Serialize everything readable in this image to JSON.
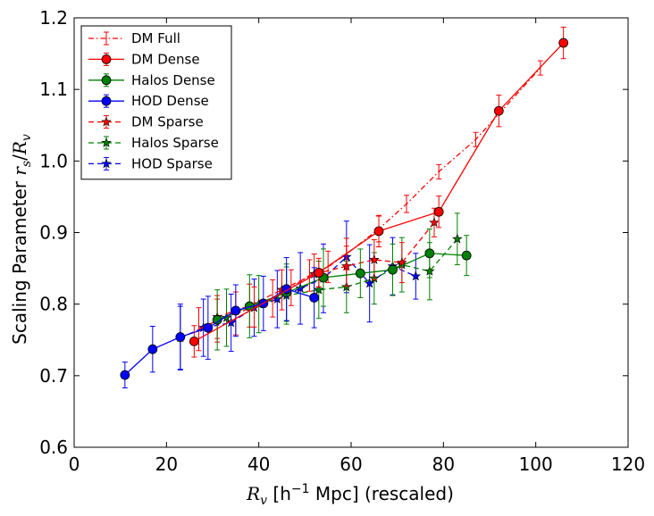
{
  "chart_data": {
    "type": "scatter",
    "title": "",
    "xlabel": "R_v [h^-1 Mpc] (rescaled)",
    "ylabel": "Scaling Parameter r_s / R_v",
    "xlabel_parts": {
      "r": "R",
      "sub": "v",
      "unit_open": "[h",
      "sup": "−1",
      "unit_close": "Mpc] (rescaled)"
    },
    "ylabel_parts": {
      "text": "Scaling Parameter ",
      "r1": "r",
      "sub1": "s",
      "slash": "/",
      "r2": "R",
      "sub2": "v"
    },
    "xlim": [
      0,
      120
    ],
    "ylim": [
      0.6,
      1.2
    ],
    "xticks": [
      0,
      20,
      40,
      60,
      80,
      100,
      120
    ],
    "xtick_labels": [
      "0",
      "20",
      "40",
      "60",
      "80",
      "100",
      "120"
    ],
    "yticks": [
      0.6,
      0.7,
      0.8,
      0.9,
      1.0,
      1.1,
      1.2
    ],
    "ytick_labels": [
      "0.6",
      "0.7",
      "0.8",
      "0.9",
      "1.0",
      "1.1",
      "1.2"
    ],
    "legend_position": "top-left",
    "series": [
      {
        "name": "DM Full",
        "color": "#ff0000",
        "linestyle": "dashdot",
        "marker": "none",
        "x": [
          27,
          31,
          35,
          39,
          43,
          47,
          51,
          55,
          59,
          66,
          72,
          79,
          87,
          101
        ],
        "y": [
          0.765,
          0.777,
          0.787,
          0.796,
          0.808,
          0.823,
          0.84,
          0.852,
          0.87,
          0.905,
          0.94,
          0.985,
          1.03,
          1.13
        ],
        "err": [
          0.03,
          0.03,
          0.03,
          0.028,
          0.026,
          0.025,
          0.022,
          0.022,
          0.022,
          0.018,
          0.012,
          0.01,
          0.01,
          0.01
        ]
      },
      {
        "name": "DM Dense",
        "color": "#ff0000",
        "linestyle": "solid",
        "marker": "circle",
        "x": [
          26,
          53,
          66,
          79,
          92,
          106
        ],
        "y": [
          0.748,
          0.844,
          0.902,
          0.929,
          1.07,
          1.165
        ],
        "err": [
          0.022,
          0.02,
          0.022,
          0.022,
          0.022,
          0.022
        ]
      },
      {
        "name": "Halos Dense",
        "color": "#008000",
        "linestyle": "solid",
        "marker": "circle",
        "x": [
          31,
          38,
          46,
          54,
          62,
          69,
          77,
          85
        ],
        "y": [
          0.778,
          0.797,
          0.816,
          0.837,
          0.843,
          0.848,
          0.871,
          0.868
        ],
        "err": [
          0.042,
          0.044,
          0.04,
          0.04,
          0.034,
          0.036,
          0.034,
          0.028
        ]
      },
      {
        "name": "HOD Dense",
        "color": "#0000ff",
        "linestyle": "solid",
        "marker": "circle",
        "x": [
          11,
          17,
          23,
          29,
          35,
          41,
          46,
          52
        ],
        "y": [
          0.701,
          0.737,
          0.754,
          0.767,
          0.791,
          0.801,
          0.821,
          0.809
        ],
        "err": [
          0.018,
          0.032,
          0.046,
          0.044,
          0.036,
          0.038,
          0.044,
          0.042
        ]
      },
      {
        "name": "DM Sparse",
        "color": "#ff0000",
        "linestyle": "dashed",
        "marker": "star",
        "x": [
          31,
          38,
          45,
          52,
          59,
          65,
          71,
          78
        ],
        "y": [
          0.782,
          0.798,
          0.82,
          0.842,
          0.853,
          0.862,
          0.858,
          0.914
        ],
        "err": [
          0.03,
          0.03,
          0.028,
          0.028,
          0.028,
          0.028,
          0.028,
          0.02
        ]
      },
      {
        "name": "Halos Sparse",
        "color": "#008000",
        "linestyle": "dashed",
        "marker": "star",
        "x": [
          33,
          40,
          46,
          53,
          59,
          65,
          71,
          77,
          83
        ],
        "y": [
          0.781,
          0.8,
          0.812,
          0.82,
          0.824,
          0.836,
          0.855,
          0.846,
          0.891
        ],
        "err": [
          0.04,
          0.04,
          0.04,
          0.04,
          0.036,
          0.036,
          0.038,
          0.04,
          0.036
        ]
      },
      {
        "name": "HOD Sparse",
        "color": "#0000ff",
        "linestyle": "dashed",
        "marker": "star",
        "x": [
          23,
          28,
          34,
          39,
          44,
          49,
          54,
          59,
          64,
          69,
          74
        ],
        "y": [
          0.753,
          0.767,
          0.774,
          0.795,
          0.807,
          0.822,
          0.836,
          0.866,
          0.829,
          0.853,
          0.839
        ],
        "err": [
          0.044,
          0.04,
          0.04,
          0.04,
          0.04,
          0.05,
          0.048,
          0.05,
          0.054,
          0.04,
          0.032
        ]
      }
    ]
  }
}
